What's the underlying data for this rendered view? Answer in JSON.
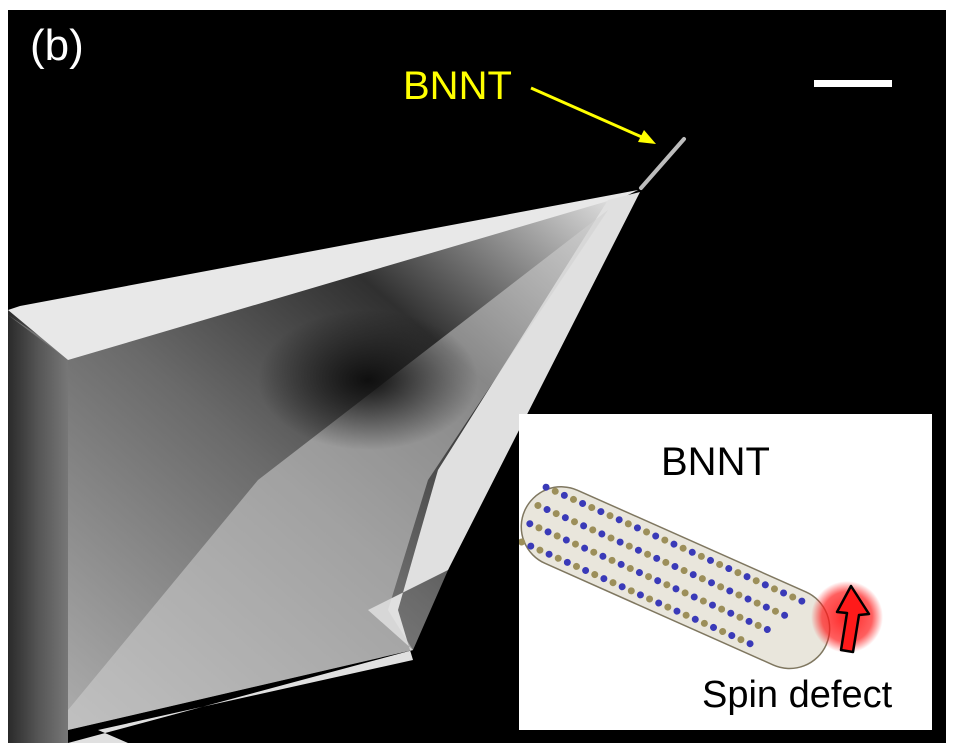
{
  "figure": {
    "panel_label": "(b)",
    "annotation_label": "BNNT",
    "annotation_color": "#ffff00",
    "inset": {
      "title": "BNNT",
      "caption": "Spin defect",
      "atom_color_a": "#3a3ab8",
      "atom_color_b": "#9c8f5a",
      "defect_color": "#ff1a1a"
    }
  }
}
